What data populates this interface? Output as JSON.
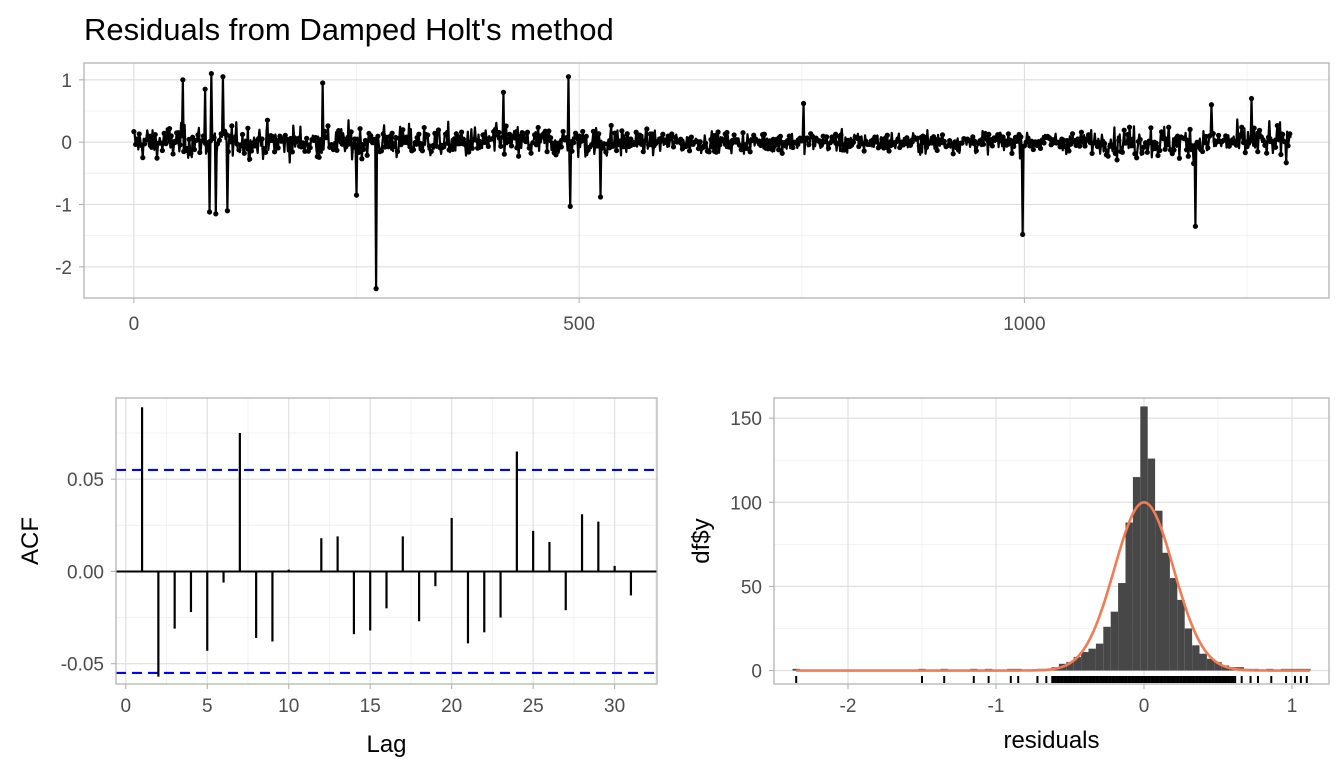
{
  "title": "Residuals from Damped Holt's method",
  "colors": {
    "series": "#000000",
    "ci_band": "#0000ff",
    "density": "#f47a52",
    "histogram": "#474747",
    "grid": "#dedede",
    "panel_border": "#b3b3b3"
  },
  "chart_data": [
    {
      "type": "line",
      "markers": true,
      "grid": true,
      "xlim": [
        -56,
        1342
      ],
      "ylim": [
        -2.5,
        1.27
      ],
      "xticks": [
        "0",
        "500",
        "1000"
      ],
      "yticks": [
        "1",
        "0",
        "-1",
        "-2"
      ],
      "xlabel": "",
      "ylabel": "",
      "n_points": 1300,
      "notable_points": [
        {
          "x": 55,
          "y": 1.0
        },
        {
          "x": 80,
          "y": 0.85
        },
        {
          "x": 87,
          "y": 1.1
        },
        {
          "x": 100,
          "y": 1.05
        },
        {
          "x": 85,
          "y": -1.12
        },
        {
          "x": 92,
          "y": -1.15
        },
        {
          "x": 105,
          "y": -1.1
        },
        {
          "x": 212,
          "y": 0.95
        },
        {
          "x": 250,
          "y": -0.85
        },
        {
          "x": 272,
          "y": -2.35
        },
        {
          "x": 415,
          "y": 0.8
        },
        {
          "x": 488,
          "y": 1.05
        },
        {
          "x": 490,
          "y": -1.03
        },
        {
          "x": 524,
          "y": -0.88
        },
        {
          "x": 752,
          "y": 0.62
        },
        {
          "x": 998,
          "y": -1.48
        },
        {
          "x": 1192,
          "y": -1.35
        },
        {
          "x": 1210,
          "y": 0.6
        },
        {
          "x": 1255,
          "y": 0.7
        }
      ]
    },
    {
      "type": "bar",
      "subtype": "acf",
      "grid": true,
      "xlabel": "Lag",
      "ylabel": "ACF",
      "xlim": [
        -0.6,
        32.6
      ],
      "ylim": [
        -0.061,
        0.094
      ],
      "xticks": [
        "0",
        "5",
        "10",
        "15",
        "20",
        "25",
        "30"
      ],
      "yticks": [
        "0.05",
        "0.00",
        "-0.05"
      ],
      "ci_bounds": [
        0.055,
        -0.055
      ],
      "lags": [
        1,
        2,
        3,
        4,
        5,
        6,
        7,
        8,
        9,
        10,
        11,
        12,
        13,
        14,
        15,
        16,
        17,
        18,
        19,
        20,
        21,
        22,
        23,
        24,
        25,
        26,
        27,
        28,
        29,
        30,
        31
      ],
      "values": [
        0.089,
        -0.057,
        -0.031,
        -0.022,
        -0.043,
        -0.006,
        0.075,
        -0.036,
        -0.038,
        0.001,
        0.0,
        0.018,
        0.019,
        -0.034,
        -0.032,
        -0.02,
        0.019,
        -0.027,
        -0.008,
        0.029,
        -0.039,
        -0.033,
        -0.025,
        0.065,
        0.022,
        0.016,
        -0.021,
        0.031,
        0.027,
        0.003,
        -0.013
      ]
    },
    {
      "type": "bar",
      "subtype": "histogram",
      "grid": true,
      "xlabel": "residuals",
      "ylabel": "df$y",
      "xlim": [
        -2.5,
        1.25
      ],
      "ylim": [
        -8,
        162
      ],
      "xticks": [
        "-2",
        "-1",
        "0",
        "1"
      ],
      "yticks": [
        "150",
        "100",
        "50",
        "0"
      ],
      "bin_width": 0.05,
      "bins": [
        {
          "x": -2.35,
          "count": 1
        },
        {
          "x": -1.5,
          "count": 1
        },
        {
          "x": -1.35,
          "count": 1
        },
        {
          "x": -1.15,
          "count": 1
        },
        {
          "x": -1.05,
          "count": 1
        },
        {
          "x": -0.9,
          "count": 1
        },
        {
          "x": -0.85,
          "count": 1
        },
        {
          "x": -0.7,
          "count": 1
        },
        {
          "x": -0.65,
          "count": 1
        },
        {
          "x": -0.6,
          "count": 2
        },
        {
          "x": -0.55,
          "count": 4
        },
        {
          "x": -0.5,
          "count": 5
        },
        {
          "x": -0.45,
          "count": 8
        },
        {
          "x": -0.4,
          "count": 11
        },
        {
          "x": -0.35,
          "count": 13
        },
        {
          "x": -0.3,
          "count": 16
        },
        {
          "x": -0.25,
          "count": 26
        },
        {
          "x": -0.2,
          "count": 35
        },
        {
          "x": -0.15,
          "count": 52
        },
        {
          "x": -0.1,
          "count": 88
        },
        {
          "x": -0.05,
          "count": 115
        },
        {
          "x": 0.0,
          "count": 157
        },
        {
          "x": 0.05,
          "count": 126
        },
        {
          "x": 0.1,
          "count": 95
        },
        {
          "x": 0.15,
          "count": 70
        },
        {
          "x": 0.2,
          "count": 55
        },
        {
          "x": 0.25,
          "count": 42
        },
        {
          "x": 0.3,
          "count": 25
        },
        {
          "x": 0.35,
          "count": 15
        },
        {
          "x": 0.4,
          "count": 10
        },
        {
          "x": 0.45,
          "count": 7
        },
        {
          "x": 0.5,
          "count": 5
        },
        {
          "x": 0.55,
          "count": 3
        },
        {
          "x": 0.6,
          "count": 2
        },
        {
          "x": 0.65,
          "count": 2
        },
        {
          "x": 0.7,
          "count": 1
        },
        {
          "x": 0.75,
          "count": 1
        },
        {
          "x": 0.85,
          "count": 1
        },
        {
          "x": 0.95,
          "count": 1
        },
        {
          "x": 1.0,
          "count": 1
        },
        {
          "x": 1.05,
          "count": 1
        },
        {
          "x": 1.1,
          "count": 1
        }
      ],
      "density_curve": {
        "type": "normal",
        "mean": 0.0,
        "sd": 0.2,
        "peak": 100
      },
      "rug": true
    }
  ]
}
